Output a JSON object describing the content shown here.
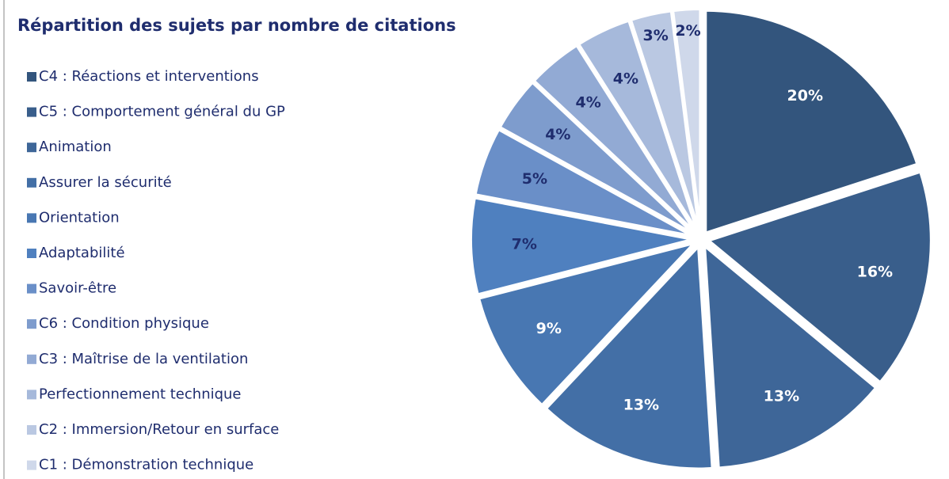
{
  "chart_data": {
    "type": "pie",
    "title": "Répartition des sujets par nombre de citations",
    "categories": [
      "C4 : Réactions et interventions",
      "C5 : Comportement général du GP",
      "Animation",
      "Assurer la sécurité",
      "Orientation",
      "Adaptabilité",
      "Savoir-être",
      "C6 : Condition physique",
      "C3 : Maîtrise de la ventilation",
      "Perfectionnement technique",
      "C2 : Immersion/Retour en surface",
      "C1 : Démonstration technique"
    ],
    "values": [
      20,
      16,
      13,
      13,
      9,
      7,
      5,
      4,
      4,
      4,
      3,
      2
    ],
    "value_labels": [
      "20%",
      "16%",
      "13%",
      "13%",
      "9%",
      "7%",
      "5%",
      "4%",
      "4%",
      "4%",
      "3%",
      "2%"
    ],
    "colors": [
      "#33557d",
      "#395e8b",
      "#3e6698",
      "#436fa6",
      "#4877b2",
      "#4f80bf",
      "#6a8fc8",
      "#7e9ccd",
      "#92aad4",
      "#a6b9db",
      "#bac8e2",
      "#cfd8ea"
    ],
    "legend": "left"
  }
}
